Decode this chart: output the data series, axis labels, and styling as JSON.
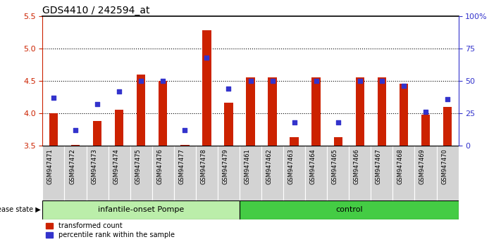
{
  "title": "GDS4410 / 242594_at",
  "samples": [
    "GSM947471",
    "GSM947472",
    "GSM947473",
    "GSM947474",
    "GSM947475",
    "GSM947476",
    "GSM947477",
    "GSM947478",
    "GSM947479",
    "GSM947461",
    "GSM947462",
    "GSM947463",
    "GSM947464",
    "GSM947465",
    "GSM947466",
    "GSM947467",
    "GSM947468",
    "GSM947469",
    "GSM947470"
  ],
  "red_values": [
    4.0,
    3.51,
    3.88,
    4.06,
    4.6,
    4.5,
    3.51,
    5.28,
    4.16,
    4.55,
    4.55,
    3.63,
    4.55,
    3.63,
    4.55,
    4.55,
    4.46,
    3.98,
    4.1
  ],
  "blue_percentiles": [
    37,
    12,
    32,
    42,
    50,
    50,
    12,
    68,
    44,
    50,
    50,
    18,
    50,
    18,
    50,
    50,
    46,
    26,
    36
  ],
  "group1_count": 9,
  "group2_count": 10,
  "group1_label": "infantile-onset Pompe",
  "group2_label": "control",
  "disease_state_label": "disease state",
  "ylim_left": [
    3.5,
    5.5
  ],
  "ylim_right": [
    0,
    100
  ],
  "yticks_left": [
    3.5,
    4.0,
    4.5,
    5.0,
    5.5
  ],
  "yticks_right": [
    0,
    25,
    50,
    75,
    100
  ],
  "ytick_labels_right": [
    "0",
    "25",
    "50",
    "75",
    "100%"
  ],
  "bar_color": "#cc2200",
  "dot_color": "#3333cc",
  "sample_bg_color": "#d3d3d3",
  "group1_bg": "#bbeeaa",
  "group2_bg": "#44cc44",
  "legend_red_label": "transformed count",
  "legend_blue_label": "percentile rank within the sample",
  "left_axis_color": "#cc2200",
  "right_axis_color": "#3333cc",
  "grid_color": "black",
  "grid_linestyle": "dotted",
  "grid_linewidth": 0.8,
  "bar_width": 0.4,
  "dot_size": 25,
  "title_fontsize": 10,
  "tick_fontsize": 8,
  "sample_fontsize": 6,
  "legend_fontsize": 7,
  "group_fontsize": 8
}
